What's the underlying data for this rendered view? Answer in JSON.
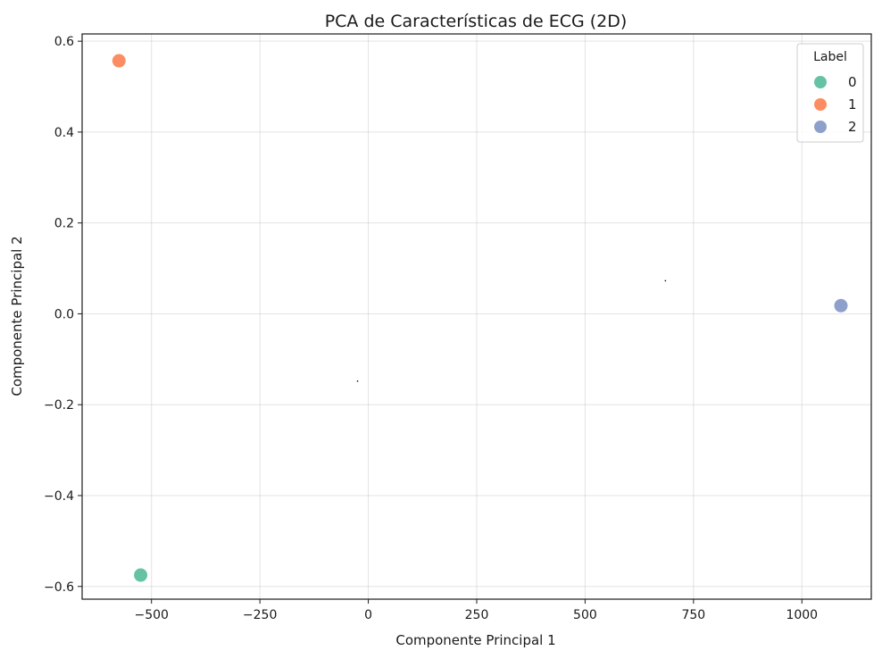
{
  "chart_data": {
    "type": "scatter",
    "title": "PCA de Características de ECG (2D)",
    "xlabel": "Componente Principal 1",
    "ylabel": "Componente Principal 2",
    "xlim": [
      -660,
      1160
    ],
    "ylim": [
      -0.628,
      0.616
    ],
    "xticks": [
      -500,
      -250,
      0,
      250,
      500,
      750,
      1000
    ],
    "xtick_labels": [
      "−500",
      "−250",
      "0",
      "250",
      "500",
      "750",
      "1000"
    ],
    "yticks": [
      -0.6,
      -0.4,
      -0.2,
      0.0,
      0.2,
      0.4,
      0.6
    ],
    "ytick_labels": [
      "−0.6",
      "−0.4",
      "−0.2",
      "0.0",
      "0.2",
      "0.4",
      "0.6"
    ],
    "grid": true,
    "legend": {
      "title": "Label",
      "position": "top-right",
      "entries": [
        {
          "label": "0",
          "color": "#66c2a5"
        },
        {
          "label": "1",
          "color": "#fc8d62"
        },
        {
          "label": "2",
          "color": "#8da0cb"
        }
      ]
    },
    "series": [
      {
        "name": "0",
        "color": "#66c2a5",
        "points": [
          [
            -525,
            -0.575
          ]
        ]
      },
      {
        "name": "1",
        "color": "#fc8d62",
        "points": [
          [
            -575,
            0.557
          ]
        ]
      },
      {
        "name": "2",
        "color": "#8da0cb",
        "points": [
          [
            1090,
            0.018
          ]
        ]
      }
    ],
    "specks": [
      [
        -25,
        -0.148
      ],
      [
        685,
        0.073
      ]
    ]
  }
}
